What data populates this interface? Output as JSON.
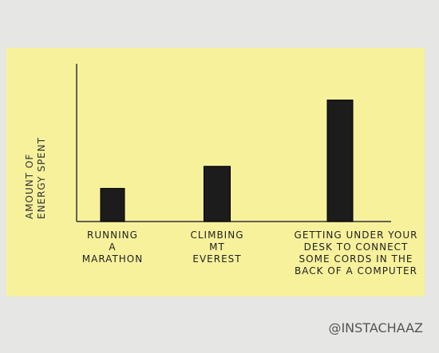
{
  "chart_data": {
    "type": "bar",
    "ylabel": "AMOUNT OF\nENERGY SPENT",
    "categories": [
      "RUNNING\nA\nMARATHON",
      "CLIMBING\nMT\nEVEREST",
      "GETTING UNDER YOUR\nDESK TO CONNECT\nSOME CORDS IN THE\nBACK OF A COMPUTER"
    ],
    "values": [
      21,
      35,
      77
    ],
    "color": "#1c1c1c",
    "ylim": [
      0,
      100
    ]
  },
  "credit": "@INSTACHAAZ"
}
